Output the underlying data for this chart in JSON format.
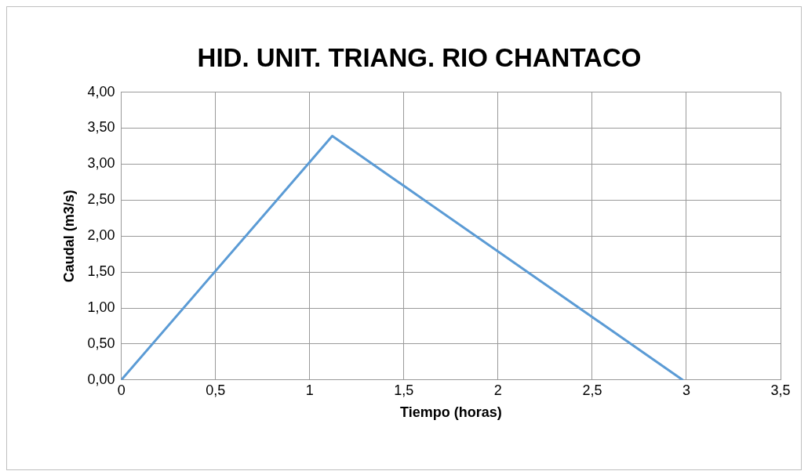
{
  "chart_data": {
    "type": "line",
    "title": "HID. UNIT. TRIANG. RIO CHANTACO",
    "xlabel": "Tiempo (horas)",
    "ylabel": "Caudal (m3/s)",
    "x": [
      0,
      1.12,
      2.98
    ],
    "series": [
      {
        "color": "#5b9bd5",
        "values": [
          0,
          3.39,
          0
        ]
      }
    ],
    "xlim": [
      0,
      3.5
    ],
    "xticks": [
      0,
      {
        "value": 0.5,
        "label": "0,5"
      },
      1,
      {
        "value": 1.5,
        "label": "1,5"
      },
      2,
      {
        "value": 2.5,
        "label": "2,5"
      },
      3,
      {
        "value": 3.5,
        "label": "3,5"
      }
    ],
    "ylim": [
      0,
      4
    ],
    "yticks": [
      {
        "value": 0,
        "label": "0,00"
      },
      {
        "value": 0.5,
        "label": "0,50"
      },
      {
        "value": 1,
        "label": "1,00"
      },
      {
        "value": 1.5,
        "label": "1,50"
      },
      {
        "value": 2,
        "label": "2,00"
      },
      {
        "value": 2.5,
        "label": "2,50"
      },
      {
        "value": 3,
        "label": "3,00"
      },
      {
        "value": 3.5,
        "label": "3,50"
      },
      {
        "value": 4,
        "label": "4,00"
      }
    ],
    "grid": true,
    "legend": false,
    "marker": "none",
    "line_style": "solid"
  }
}
